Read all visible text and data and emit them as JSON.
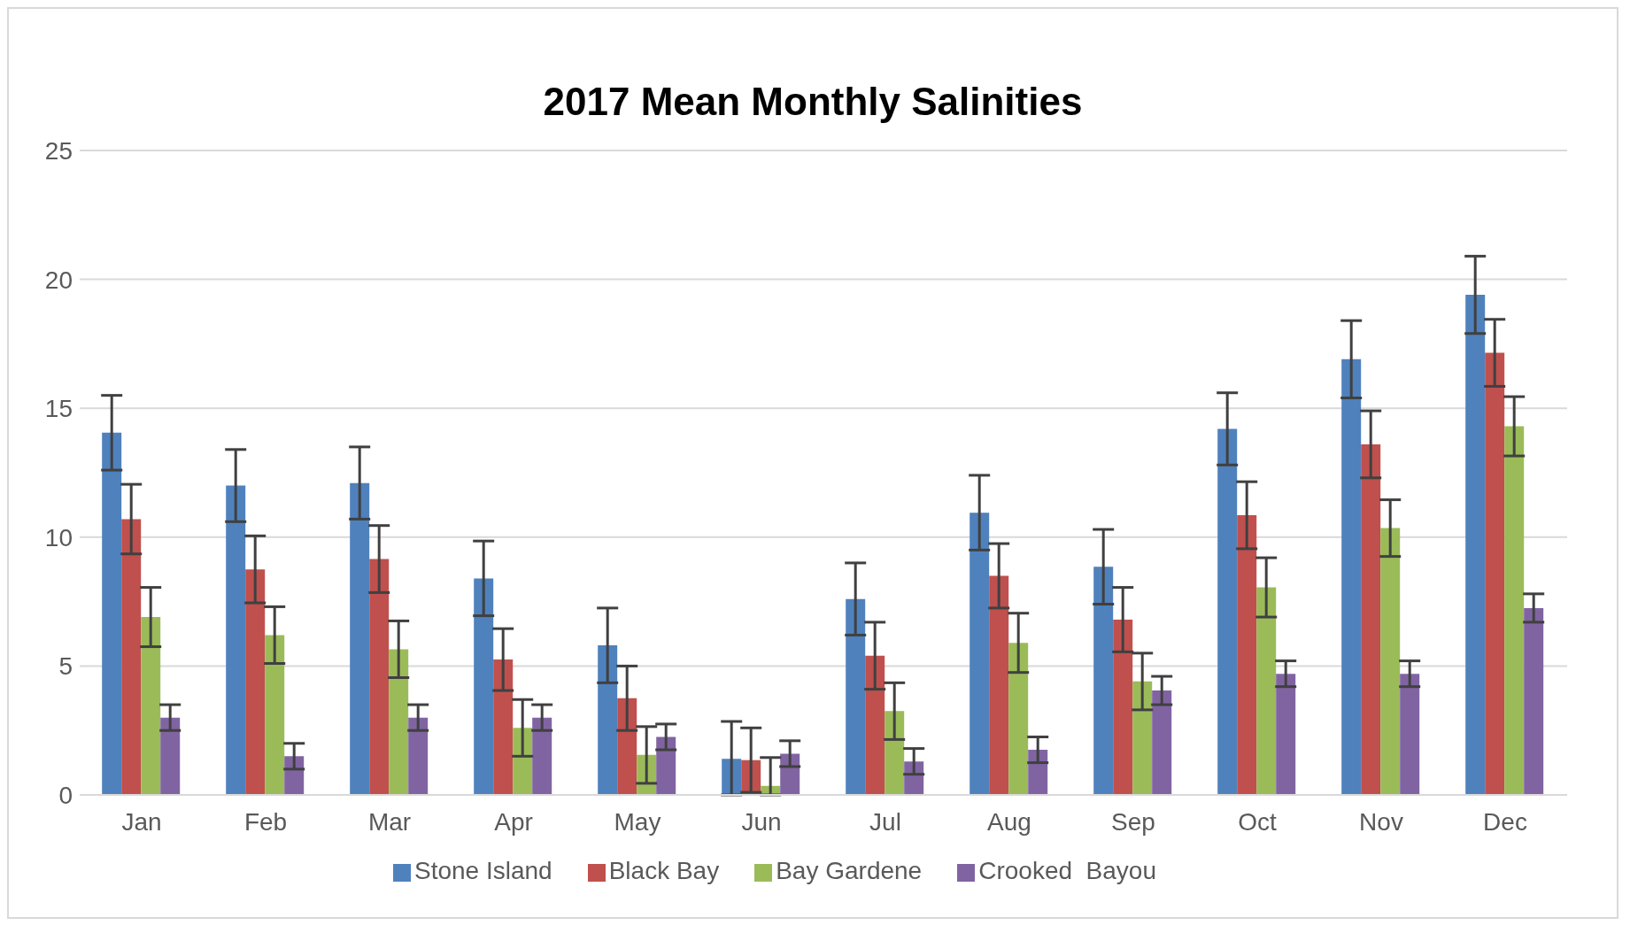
{
  "chart_data": {
    "type": "bar",
    "title": "2017 Mean Monthly Salinities",
    "categories": [
      "Jan",
      "Feb",
      "Mar",
      "Apr",
      "May",
      "Jun",
      "Jul",
      "Aug",
      "Sep",
      "Oct",
      "Nov",
      "Dec"
    ],
    "series": [
      {
        "name": "Stone Island",
        "color": "#4f81bd",
        "values": [
          14.05,
          12.0,
          12.1,
          8.4,
          5.8,
          1.4,
          7.6,
          10.95,
          8.85,
          14.2,
          16.9,
          19.4
        ],
        "errors": [
          1.45,
          1.4,
          1.4,
          1.45,
          1.45,
          [
            0,
            2.85
          ],
          1.4,
          1.45,
          1.45,
          1.4,
          1.5,
          1.5
        ]
      },
      {
        "name": "Black Bay",
        "color": "#c0504d",
        "values": [
          10.7,
          8.75,
          9.15,
          5.25,
          3.75,
          1.35,
          5.4,
          8.5,
          6.8,
          10.85,
          13.6,
          17.15
        ],
        "errors": [
          1.35,
          1.3,
          1.3,
          1.2,
          1.25,
          [
            0.1,
            2.6
          ],
          1.3,
          1.25,
          1.25,
          1.3,
          1.3,
          1.3
        ]
      },
      {
        "name": "Bay Gardene",
        "color": "#9bbb59",
        "values": [
          6.9,
          6.2,
          5.65,
          2.6,
          1.55,
          0.35,
          3.25,
          5.9,
          4.4,
          8.05,
          10.35,
          14.3
        ],
        "errors": [
          1.15,
          1.1,
          1.1,
          1.1,
          1.1,
          [
            0,
            1.45
          ],
          1.1,
          1.15,
          1.1,
          1.15,
          1.1,
          1.15
        ]
      },
      {
        "name": "Crooked  Bayou",
        "color": "#8064a2",
        "values": [
          3.0,
          1.5,
          3.0,
          3.0,
          2.25,
          1.6,
          1.3,
          1.75,
          4.05,
          4.7,
          4.7,
          7.25
        ],
        "errors": [
          0.5,
          0.5,
          0.5,
          0.5,
          0.5,
          0.5,
          0.5,
          0.5,
          0.55,
          0.5,
          0.5,
          0.55
        ]
      }
    ],
    "ylim": [
      0,
      25
    ],
    "yticks": [
      0,
      5,
      10,
      15,
      20,
      25
    ],
    "grid": "y",
    "legend": "bottom"
  }
}
